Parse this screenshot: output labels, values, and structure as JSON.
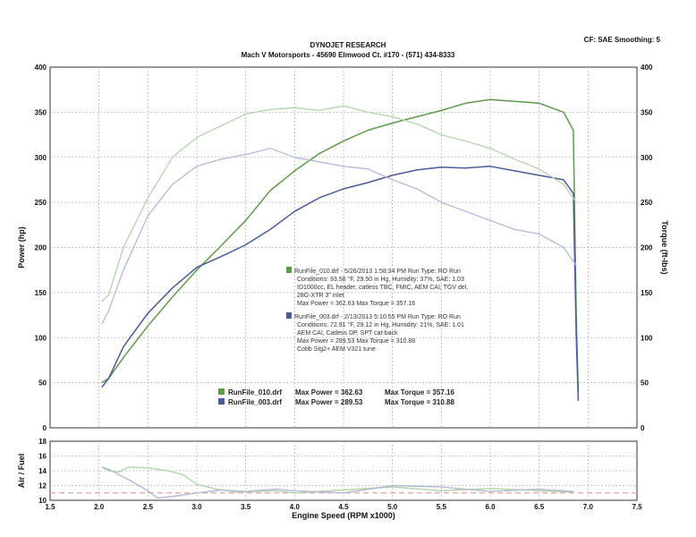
{
  "header": {
    "title": "DYNOJET RESEARCH",
    "subtitle": "Mach V Motorsports - 45690 Elmwood Ct. #170 - (571) 434-8333",
    "settings": "CF: SAE  Smoothing: 5"
  },
  "chart_data": [
    {
      "type": "line",
      "name": "power-torque",
      "ylabel": "Power (hp)",
      "y2label": "Torque (ft-lbs)",
      "xlim": [
        1.5,
        7.5
      ],
      "ylim": [
        0,
        400
      ],
      "y2lim": [
        0,
        400
      ],
      "yticks": [
        0,
        50,
        100,
        150,
        200,
        250,
        300,
        350,
        400
      ],
      "y2ticks": [
        0,
        50,
        100,
        150,
        200,
        250,
        300,
        350,
        400
      ],
      "grid": true,
      "colors": {
        "run010": "#5e9a4c",
        "run003": "#4a5a98",
        "grid": "#b6b6b6"
      },
      "series": [
        {
          "id": "run010_power",
          "run": "run010",
          "faded": false,
          "x": [
            2.03,
            2.1,
            2.25,
            2.5,
            2.75,
            3.0,
            3.25,
            3.5,
            3.75,
            4.0,
            4.25,
            4.5,
            4.75,
            5.0,
            5.25,
            5.5,
            5.75,
            6.0,
            6.25,
            6.5,
            6.75,
            6.85,
            6.88,
            6.9
          ],
          "y": [
            50,
            55,
            78,
            113,
            145,
            175,
            202,
            230,
            263,
            285,
            304,
            318,
            330,
            338,
            345,
            352,
            360,
            364,
            362,
            360,
            350,
            330,
            120,
            40
          ]
        },
        {
          "id": "run003_power",
          "run": "run003",
          "faded": false,
          "x": [
            2.03,
            2.1,
            2.25,
            2.5,
            2.75,
            3.0,
            3.25,
            3.5,
            3.75,
            4.0,
            4.25,
            4.5,
            4.75,
            5.0,
            5.25,
            5.5,
            5.75,
            6.0,
            6.25,
            6.5,
            6.75,
            6.85,
            6.88,
            6.9
          ],
          "y": [
            45,
            55,
            90,
            127,
            155,
            178,
            190,
            203,
            220,
            240,
            255,
            265,
            272,
            280,
            286,
            289,
            288,
            290,
            285,
            280,
            275,
            260,
            100,
            30
          ]
        },
        {
          "id": "run010_torque",
          "run": "run010",
          "faded": true,
          "x": [
            2.03,
            2.1,
            2.25,
            2.5,
            2.75,
            3.0,
            3.25,
            3.5,
            3.75,
            4.0,
            4.25,
            4.5,
            4.75,
            5.0,
            5.25,
            5.5,
            5.75,
            6.0,
            6.25,
            6.5,
            6.75,
            6.88
          ],
          "y": [
            140,
            148,
            200,
            255,
            300,
            322,
            335,
            348,
            353,
            355,
            352,
            357,
            350,
            345,
            337,
            325,
            318,
            310,
            298,
            287,
            270,
            250
          ]
        },
        {
          "id": "run003_torque",
          "run": "run003",
          "faded": true,
          "x": [
            2.03,
            2.1,
            2.25,
            2.5,
            2.75,
            3.0,
            3.25,
            3.5,
            3.75,
            4.0,
            4.25,
            4.5,
            4.75,
            5.0,
            5.25,
            5.5,
            5.75,
            6.0,
            6.25,
            6.5,
            6.75,
            6.88
          ],
          "y": [
            115,
            130,
            175,
            235,
            270,
            290,
            298,
            303,
            310,
            300,
            295,
            290,
            287,
            275,
            265,
            250,
            240,
            230,
            220,
            215,
            200,
            180
          ]
        }
      ],
      "annotations": [
        {
          "run": "run010",
          "lines": [
            "RunFile_010.drf - 5/26/2013 1:58:34 PM  Run Type: RO  Run",
            "Conditions: 93.58 °F, 29.50 in Hg,  Humidity: 37%,  SAE: 1.03",
            "ID1000cc, EL header, catless TBC, FMIC, AEM CAI, TGV del,",
            "28G-XTR 3\" inlet",
            "Max Power = 362.63  Max Torque = 357.16"
          ]
        },
        {
          "run": "run003",
          "lines": [
            "RunFile_003.drf - 2/13/2013 5:10:55 PM  Run Type: RO  Run",
            "Conditions: 72.91 °F, 29.12 in Hg,  Humidity: 21%,  SAE: 1.01",
            "AEM CAI, Catless DP, SPT cat-back",
            "Max Power = 289.53  Max Torque = 310.88",
            "Cobb Stg2+ AEM V321 tune"
          ]
        }
      ],
      "legend": [
        {
          "run": "run010",
          "file": "RunFile_010.drf",
          "power": "Max Power = 362.63",
          "torque": "Max Torque = 357.16"
        },
        {
          "run": "run003",
          "file": "RunFile_003.drf",
          "power": "Max Power = 289.53",
          "torque": "Max Torque = 310.88"
        }
      ]
    },
    {
      "type": "line",
      "name": "air-fuel",
      "ylabel": "Air / Fuel",
      "xlabel": "Engine Speed (RPM x1000)",
      "xlim": [
        1.5,
        7.5
      ],
      "xticks": [
        1.5,
        2.0,
        2.5,
        3.0,
        3.5,
        4.0,
        4.5,
        5.0,
        5.5,
        6.0,
        6.5,
        7.0,
        7.5
      ],
      "ylim": [
        10,
        18
      ],
      "yticks": [
        10,
        12,
        14,
        16,
        18
      ],
      "grid": true,
      "reference_line": 11.0,
      "series": [
        {
          "id": "run010_afr",
          "run": "run010",
          "x": [
            2.03,
            2.1,
            2.2,
            2.3,
            2.5,
            2.7,
            2.85,
            3.0,
            3.2,
            3.4,
            3.6,
            3.8,
            4.0,
            4.5,
            5.0,
            5.5,
            6.0,
            6.5,
            6.85
          ],
          "y": [
            14.5,
            14.0,
            13.8,
            14.5,
            14.4,
            14.0,
            13.5,
            12.2,
            11.5,
            11.1,
            11.2,
            11.3,
            11.0,
            11.4,
            11.8,
            11.3,
            11.6,
            11.3,
            11.1
          ]
        },
        {
          "id": "run003_afr",
          "run": "run003",
          "x": [
            2.03,
            2.1,
            2.2,
            2.3,
            2.5,
            2.6,
            2.8,
            3.0,
            3.25,
            3.5,
            3.8,
            4.0,
            4.5,
            5.0,
            5.5,
            6.0,
            6.5,
            6.85
          ],
          "y": [
            14.5,
            14.2,
            13.5,
            12.8,
            11.3,
            10.3,
            10.6,
            11.0,
            11.4,
            11.2,
            11.5,
            11.3,
            11.0,
            12.0,
            11.8,
            11.2,
            11.5,
            11.2
          ]
        }
      ]
    }
  ]
}
